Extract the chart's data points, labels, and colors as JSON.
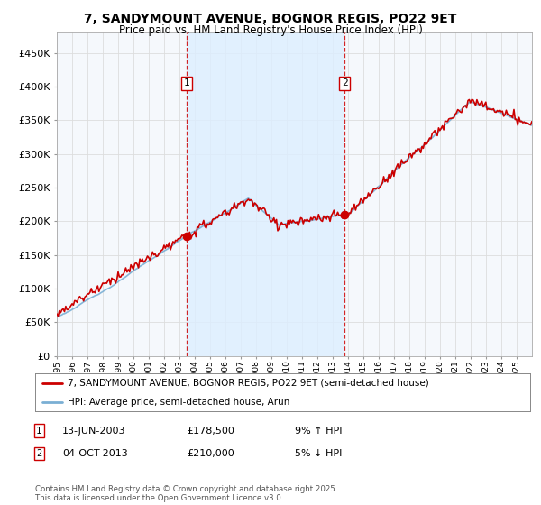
{
  "title": "7, SANDYMOUNT AVENUE, BOGNOR REGIS, PO22 9ET",
  "subtitle": "Price paid vs. HM Land Registry's House Price Index (HPI)",
  "property_label": "7, SANDYMOUNT AVENUE, BOGNOR REGIS, PO22 9ET (semi-detached house)",
  "hpi_label": "HPI: Average price, semi-detached house, Arun",
  "footnote": "Contains HM Land Registry data © Crown copyright and database right 2025.\nThis data is licensed under the Open Government Licence v3.0.",
  "sale1_date": "13-JUN-2003",
  "sale1_price": 178500,
  "sale1_label": "£178,500",
  "sale1_hpi_change": "9% ↑ HPI",
  "sale2_date": "04-OCT-2013",
  "sale2_price": 210000,
  "sale2_label": "£210,000",
  "sale2_hpi_change": "5% ↓ HPI",
  "property_color": "#cc0000",
  "hpi_color": "#7aafd4",
  "shade_color": "#ddeeff",
  "grid_color": "#dddddd",
  "plot_bg": "#f5f8fc",
  "ylim": [
    0,
    480000
  ],
  "yticks": [
    0,
    50000,
    100000,
    150000,
    200000,
    250000,
    300000,
    350000,
    400000,
    450000
  ],
  "xmin": 1995,
  "xmax": 2026
}
